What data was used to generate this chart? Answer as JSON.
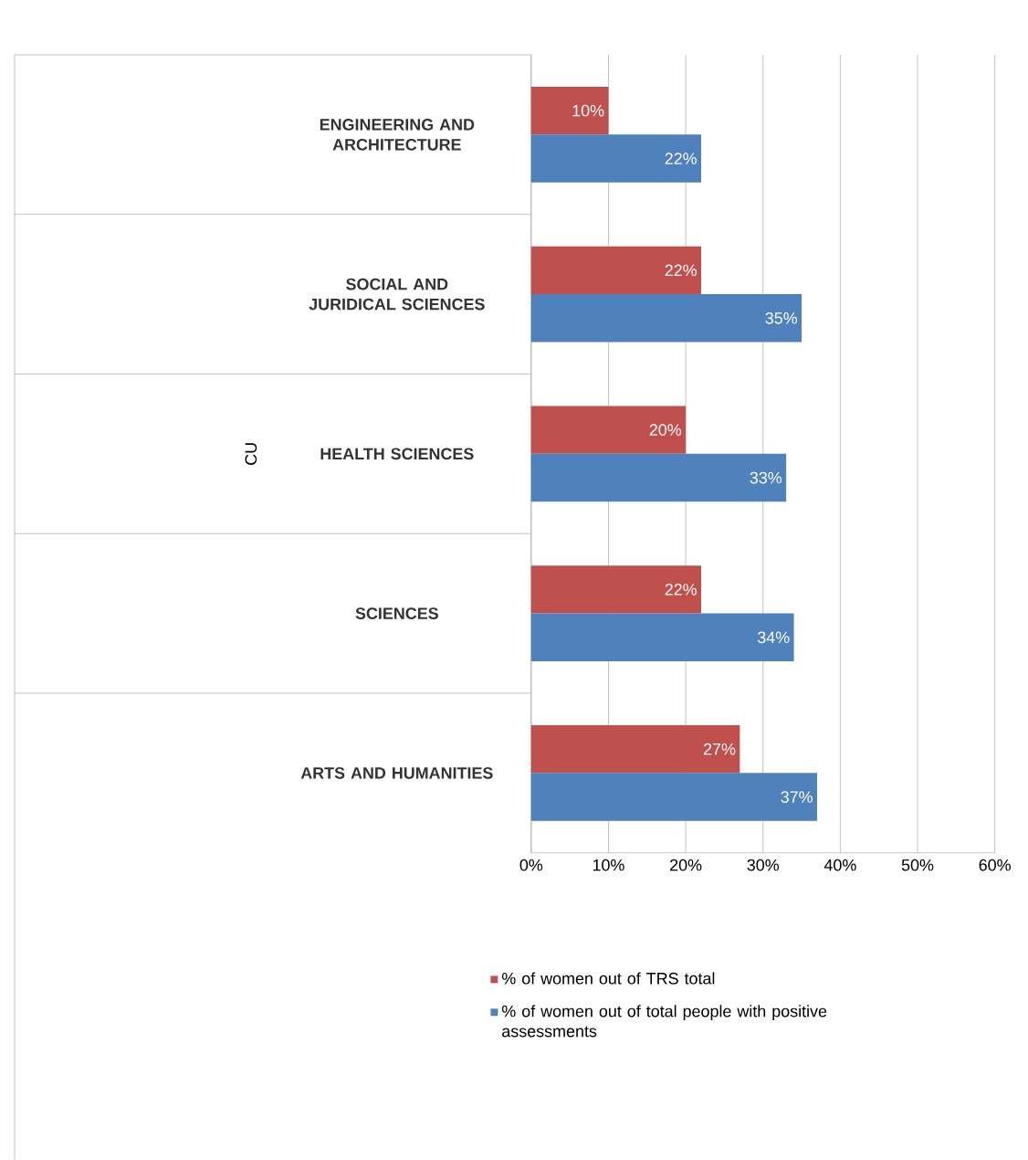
{
  "chart_data": {
    "type": "bar",
    "orientation": "horizontal",
    "ylabel": "CU",
    "categories": [
      "ENGINEERING AND ARCHITECTURE",
      "SOCIAL AND JURIDICAL SCIENCES",
      "HEALTH SCIENCES",
      "SCIENCES",
      "ARTS AND HUMANITIES"
    ],
    "series": [
      {
        "name": "% of women out of TRS total",
        "color": "#c0504d",
        "values": [
          10,
          22,
          20,
          22,
          27
        ],
        "value_labels": [
          "10%",
          "22%",
          "20%",
          "22%",
          "27%"
        ]
      },
      {
        "name": "% of women out of total people with positive assessments",
        "color": "#4f81bd",
        "values": [
          22,
          35,
          33,
          34,
          37
        ],
        "value_labels": [
          "22%",
          "35%",
          "33%",
          "34%",
          "37%"
        ]
      }
    ],
    "xlim": [
      0,
      60
    ],
    "xticks": [
      {
        "value": 0,
        "label": "0%"
      },
      {
        "value": 10,
        "label": "10%"
      },
      {
        "value": 20,
        "label": "20%"
      },
      {
        "value": 30,
        "label": "30%"
      },
      {
        "value": 40,
        "label": "40%"
      },
      {
        "value": 50,
        "label": "50%"
      },
      {
        "value": 60,
        "label": "60%"
      }
    ],
    "grid": "x",
    "legend": "bottom"
  }
}
